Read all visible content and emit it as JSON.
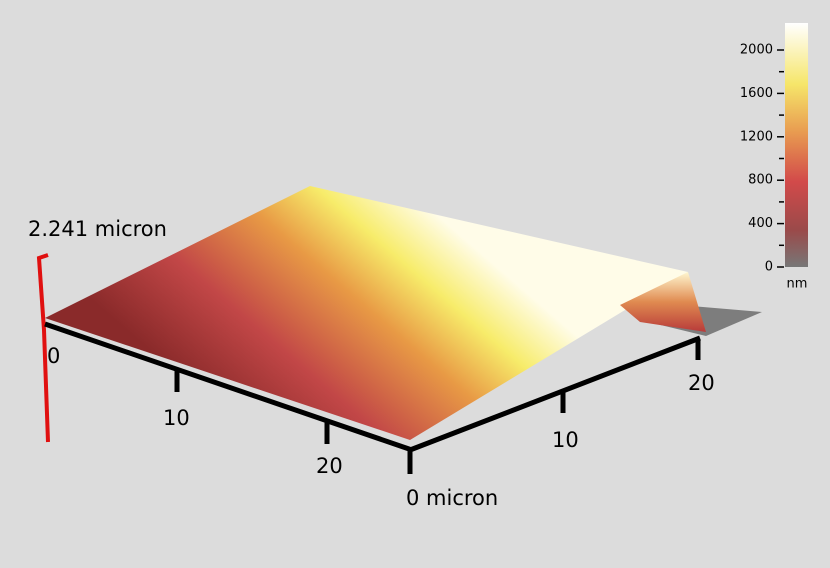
{
  "height_label": "2.241 micron",
  "left_axis": {
    "labels": [
      "0",
      "10",
      "20"
    ]
  },
  "right_axis": {
    "labels": [
      "0 micron",
      "10",
      "20"
    ]
  },
  "colorbar": {
    "ticks": [
      0,
      400,
      800,
      1200,
      1600,
      2000
    ],
    "unit": "nm"
  }
}
